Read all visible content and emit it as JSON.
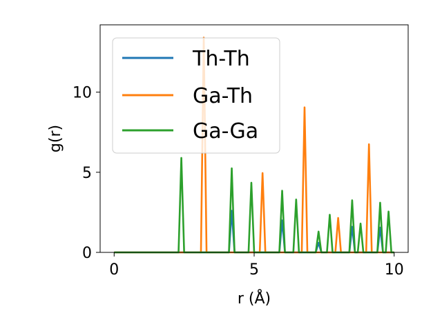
{
  "chart_data": {
    "type": "line",
    "xlabel": "r (Å)",
    "ylabel": "g(r)",
    "xlim": [
      -0.5,
      10.5
    ],
    "ylim": [
      0,
      14.2
    ],
    "xticks": [
      0,
      5,
      10
    ],
    "yticks": [
      0,
      5,
      10
    ],
    "grid": false,
    "legend_position": "upper-left",
    "series": [
      {
        "name": "Th-Th",
        "color": "#1f77b4",
        "peaks": [
          [
            4.2,
            2.6
          ],
          [
            6.0,
            2.0
          ],
          [
            7.3,
            0.6
          ],
          [
            8.5,
            1.6
          ],
          [
            9.5,
            1.55
          ]
        ]
      },
      {
        "name": "Ga-Th",
        "color": "#ff7f0e",
        "peaks": [
          [
            3.2,
            13.4
          ],
          [
            5.3,
            4.95
          ],
          [
            6.8,
            9.05
          ],
          [
            8.0,
            2.15
          ],
          [
            9.1,
            6.75
          ]
        ]
      },
      {
        "name": "Ga-Ga",
        "color": "#2ca02c",
        "peaks": [
          [
            2.4,
            5.9
          ],
          [
            4.2,
            5.25
          ],
          [
            4.9,
            4.35
          ],
          [
            6.0,
            3.85
          ],
          [
            6.5,
            3.3
          ],
          [
            7.3,
            1.3
          ],
          [
            7.7,
            2.35
          ],
          [
            8.5,
            3.25
          ],
          [
            8.8,
            1.8
          ],
          [
            9.5,
            3.1
          ],
          [
            9.8,
            2.55
          ]
        ]
      }
    ]
  }
}
